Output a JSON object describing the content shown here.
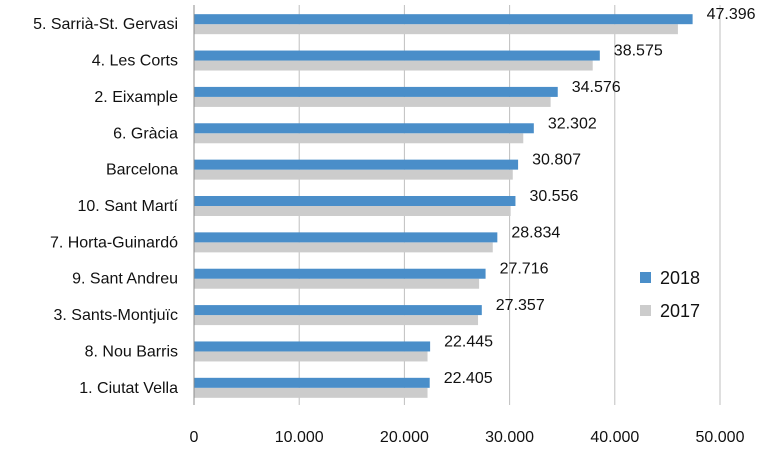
{
  "chart_data": {
    "type": "bar",
    "orientation": "horizontal",
    "categories": [
      "5. Sarrià-St. Gervasi",
      "4. Les Corts",
      "2. Eixample",
      "6. Gràcia",
      "Barcelona",
      "10. Sant Martí",
      "7. Horta-Guinardó",
      "9. Sant Andreu",
      "3. Sants-Montjuïc",
      "8. Nou Barris",
      "1. Ciutat Vella"
    ],
    "series": [
      {
        "name": "2018",
        "color": "#4a8ec9",
        "values": [
          47396,
          38575,
          34576,
          32302,
          30807,
          30556,
          28834,
          27716,
          27357,
          22445,
          22405
        ]
      },
      {
        "name": "2017",
        "color": "#cccccc",
        "values": [
          46000,
          37900,
          33900,
          31300,
          30300,
          30100,
          28400,
          27100,
          27000,
          22200,
          22200
        ]
      }
    ],
    "data_labels": [
      "47.396",
      "38.575",
      "34.576",
      "32.302",
      "30.807",
      "30.556",
      "28.834",
      "27.716",
      "27.357",
      "22.445",
      "22.405"
    ],
    "x_ticks": [
      0,
      10000,
      20000,
      30000,
      40000,
      50000
    ],
    "x_tick_labels": [
      "0",
      "10.000",
      "20.000",
      "30.000",
      "40.000",
      "50.000"
    ],
    "xlim": [
      0,
      50000
    ],
    "grid": "vertical",
    "legend": "right",
    "title": "",
    "xlabel": "",
    "ylabel": ""
  }
}
